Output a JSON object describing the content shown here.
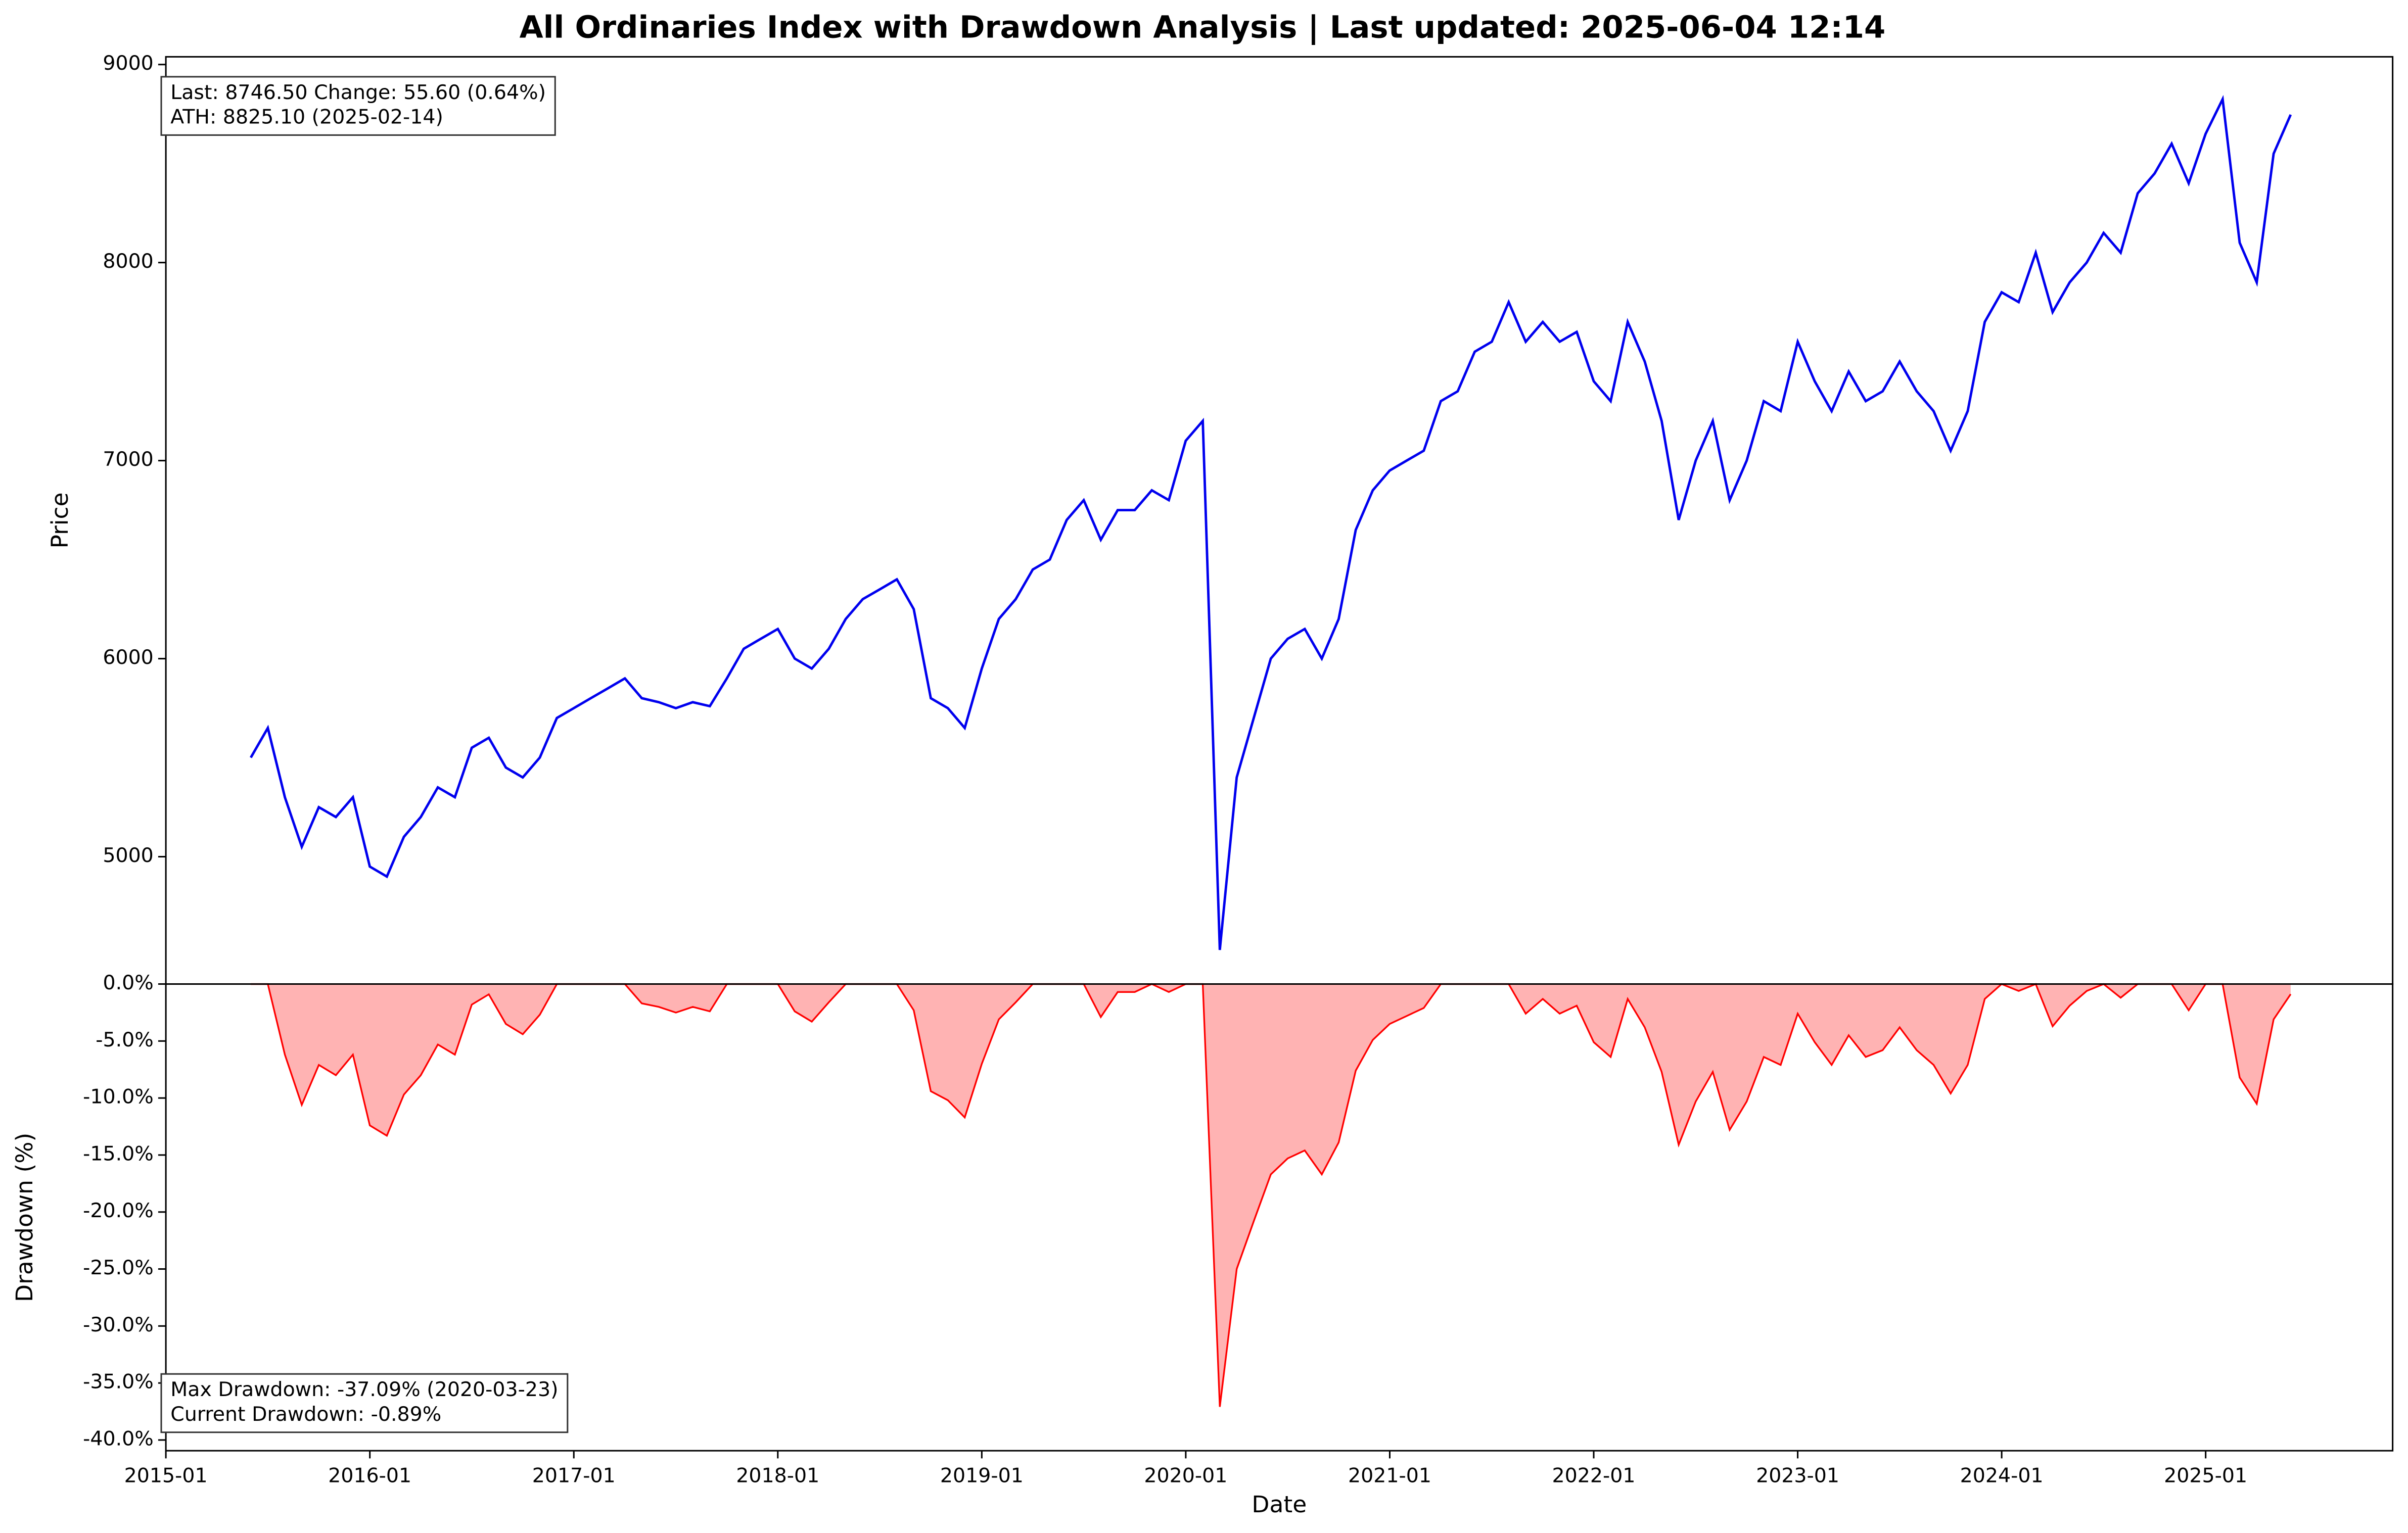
{
  "title": "All Ordinaries Index with Drawdown Analysis | Last updated: 2025-06-04 12:14",
  "chart_data": [
    {
      "type": "line",
      "ylabel": "Price",
      "color": "#0000ee",
      "annotations": [
        "Last: 8746.50  Change: 55.60 (0.64%)",
        "ATH: 8825.10 (2025-02-14)"
      ],
      "xlim": [
        "2015-01",
        "2025-12"
      ],
      "ylim": [
        4357,
        9039
      ],
      "yticks": [
        5000,
        6000,
        7000,
        8000,
        9000
      ],
      "x": [
        "2015-06",
        "2015-07",
        "2015-08",
        "2015-09",
        "2015-10",
        "2015-11",
        "2015-12",
        "2016-01",
        "2016-02",
        "2016-03",
        "2016-04",
        "2016-05",
        "2016-06",
        "2016-07",
        "2016-08",
        "2016-09",
        "2016-10",
        "2016-11",
        "2016-12",
        "2017-01",
        "2017-02",
        "2017-03",
        "2017-04",
        "2017-05",
        "2017-06",
        "2017-07",
        "2017-08",
        "2017-09",
        "2017-10",
        "2017-11",
        "2017-12",
        "2018-01",
        "2018-02",
        "2018-03",
        "2018-04",
        "2018-05",
        "2018-06",
        "2018-07",
        "2018-08",
        "2018-09",
        "2018-10",
        "2018-11",
        "2018-12",
        "2019-01",
        "2019-02",
        "2019-03",
        "2019-04",
        "2019-05",
        "2019-06",
        "2019-07",
        "2019-08",
        "2019-09",
        "2019-10",
        "2019-11",
        "2019-12",
        "2020-01",
        "2020-02",
        "2020-03",
        "2020-04",
        "2020-05",
        "2020-06",
        "2020-07",
        "2020-08",
        "2020-09",
        "2020-10",
        "2020-11",
        "2020-12",
        "2021-01",
        "2021-02",
        "2021-03",
        "2021-04",
        "2021-05",
        "2021-06",
        "2021-07",
        "2021-08",
        "2021-09",
        "2021-10",
        "2021-11",
        "2021-12",
        "2022-01",
        "2022-02",
        "2022-03",
        "2022-04",
        "2022-05",
        "2022-06",
        "2022-07",
        "2022-08",
        "2022-09",
        "2022-10",
        "2022-11",
        "2022-12",
        "2023-01",
        "2023-02",
        "2023-03",
        "2023-04",
        "2023-05",
        "2023-06",
        "2023-07",
        "2023-08",
        "2023-09",
        "2023-10",
        "2023-11",
        "2023-12",
        "2024-01",
        "2024-02",
        "2024-03",
        "2024-04",
        "2024-05",
        "2024-06",
        "2024-07",
        "2024-08",
        "2024-09",
        "2024-10",
        "2024-11",
        "2024-12",
        "2025-01",
        "2025-02",
        "2025-03",
        "2025-04",
        "2025-05",
        "2025-06"
      ],
      "values": [
        5500,
        5650,
        5300,
        5050,
        5250,
        5200,
        5300,
        4950,
        4900,
        5100,
        5200,
        5350,
        5300,
        5550,
        5600,
        5450,
        5400,
        5500,
        5700,
        5750,
        5800,
        5850,
        5900,
        5800,
        5780,
        5750,
        5780,
        5760,
        5900,
        6050,
        6100,
        6150,
        6000,
        5950,
        6050,
        6200,
        6300,
        6350,
        6400,
        6250,
        5800,
        5750,
        5650,
        5950,
        6200,
        6300,
        6450,
        6500,
        6700,
        6800,
        6600,
        6750,
        6750,
        6850,
        6800,
        7100,
        7200,
        4529,
        5400,
        5700,
        6000,
        6100,
        6150,
        6000,
        6200,
        6650,
        6850,
        6950,
        7000,
        7050,
        7300,
        7350,
        7550,
        7600,
        7800,
        7600,
        7700,
        7600,
        7650,
        7400,
        7300,
        7700,
        7500,
        7200,
        6700,
        7000,
        7200,
        6800,
        7000,
        7300,
        7250,
        7600,
        7400,
        7250,
        7450,
        7300,
        7350,
        7500,
        7350,
        7250,
        7050,
        7250,
        7700,
        7850,
        7800,
        8050,
        7750,
        7900,
        8000,
        8150,
        8050,
        8350,
        8450,
        8600,
        8400,
        8650,
        8825.1,
        8100,
        7900,
        8550,
        8746.5
      ]
    },
    {
      "type": "area",
      "ylabel": "Drawdown (%)",
      "xlabel": "Date",
      "color": "#ff0000",
      "fill": "#ffb3b3",
      "annotations": [
        "Max Drawdown: -37.09% (2020-03-23)",
        "Current Drawdown: -0.89%"
      ],
      "xlim": [
        "2015-01",
        "2025-12"
      ],
      "xticks": [
        "2015-01",
        "2016-01",
        "2017-01",
        "2018-01",
        "2019-01",
        "2020-01",
        "2021-01",
        "2022-01",
        "2023-01",
        "2024-01",
        "2025-01"
      ],
      "ylim": [
        -40.94,
        0
      ],
      "yticks": [
        {
          "value": 0,
          "label": "0.0%"
        },
        {
          "value": -5,
          "label": "-5.0%"
        },
        {
          "value": -10,
          "label": "-10.0%"
        },
        {
          "value": -15,
          "label": "-15.0%"
        },
        {
          "value": -20,
          "label": "-20.0%"
        },
        {
          "value": -25,
          "label": "-25.0%"
        },
        {
          "value": -30,
          "label": "-30.0%"
        },
        {
          "value": -35,
          "label": "-35.0%"
        },
        {
          "value": -40,
          "label": "-40.0%"
        }
      ],
      "x": [
        "2015-06",
        "2015-07",
        "2015-08",
        "2015-09",
        "2015-10",
        "2015-11",
        "2015-12",
        "2016-01",
        "2016-02",
        "2016-03",
        "2016-04",
        "2016-05",
        "2016-06",
        "2016-07",
        "2016-08",
        "2016-09",
        "2016-10",
        "2016-11",
        "2016-12",
        "2017-01",
        "2017-02",
        "2017-03",
        "2017-04",
        "2017-05",
        "2017-06",
        "2017-07",
        "2017-08",
        "2017-09",
        "2017-10",
        "2017-11",
        "2017-12",
        "2018-01",
        "2018-02",
        "2018-03",
        "2018-04",
        "2018-05",
        "2018-06",
        "2018-07",
        "2018-08",
        "2018-09",
        "2018-10",
        "2018-11",
        "2018-12",
        "2019-01",
        "2019-02",
        "2019-03",
        "2019-04",
        "2019-05",
        "2019-06",
        "2019-07",
        "2019-08",
        "2019-09",
        "2019-10",
        "2019-11",
        "2019-12",
        "2020-01",
        "2020-02",
        "2020-03",
        "2020-04",
        "2020-05",
        "2020-06",
        "2020-07",
        "2020-08",
        "2020-09",
        "2020-10",
        "2020-11",
        "2020-12",
        "2021-01",
        "2021-02",
        "2021-03",
        "2021-04",
        "2021-05",
        "2021-06",
        "2021-07",
        "2021-08",
        "2021-09",
        "2021-10",
        "2021-11",
        "2021-12",
        "2022-01",
        "2022-02",
        "2022-03",
        "2022-04",
        "2022-05",
        "2022-06",
        "2022-07",
        "2022-08",
        "2022-09",
        "2022-10",
        "2022-11",
        "2022-12",
        "2023-01",
        "2023-02",
        "2023-03",
        "2023-04",
        "2023-05",
        "2023-06",
        "2023-07",
        "2023-08",
        "2023-09",
        "2023-10",
        "2023-11",
        "2023-12",
        "2024-01",
        "2024-02",
        "2024-03",
        "2024-04",
        "2024-05",
        "2024-06",
        "2024-07",
        "2024-08",
        "2024-09",
        "2024-10",
        "2024-11",
        "2024-12",
        "2025-01",
        "2025-02",
        "2025-03",
        "2025-04",
        "2025-05",
        "2025-06"
      ],
      "values": [
        0,
        0,
        -6.2,
        -10.6,
        -7.1,
        -8.0,
        -6.2,
        -12.4,
        -13.3,
        -9.7,
        -8.0,
        -5.3,
        -6.2,
        -1.8,
        -0.9,
        -3.5,
        -4.4,
        -2.7,
        0,
        0,
        0,
        0,
        0,
        -1.7,
        -2.0,
        -2.5,
        -2.0,
        -2.4,
        0,
        0,
        0,
        0,
        -2.4,
        -3.3,
        -1.6,
        0,
        0,
        0,
        0,
        -2.3,
        -9.4,
        -10.2,
        -11.7,
        -7.0,
        -3.1,
        -1.6,
        0,
        0,
        0,
        0,
        -2.9,
        -0.7,
        -0.7,
        0,
        -0.7,
        0,
        0,
        -37.09,
        -25.0,
        -20.8,
        -16.7,
        -15.3,
        -14.6,
        -16.7,
        -13.9,
        -7.6,
        -4.9,
        -3.5,
        -2.8,
        -2.1,
        0,
        0,
        0,
        0,
        0,
        -2.6,
        -1.3,
        -2.6,
        -1.9,
        -5.1,
        -6.4,
        -1.3,
        -3.8,
        -7.7,
        -14.1,
        -10.3,
        -7.7,
        -12.8,
        -10.3,
        -6.4,
        -7.1,
        -2.6,
        -5.1,
        -7.1,
        -4.5,
        -6.4,
        -5.8,
        -3.8,
        -5.8,
        -7.1,
        -9.6,
        -7.1,
        -1.3,
        0,
        -0.6,
        0,
        -3.7,
        -1.9,
        -0.6,
        0,
        -1.2,
        0,
        0,
        0,
        -2.3,
        0,
        0,
        -8.2,
        -10.5,
        -3.1,
        -0.89
      ]
    }
  ]
}
